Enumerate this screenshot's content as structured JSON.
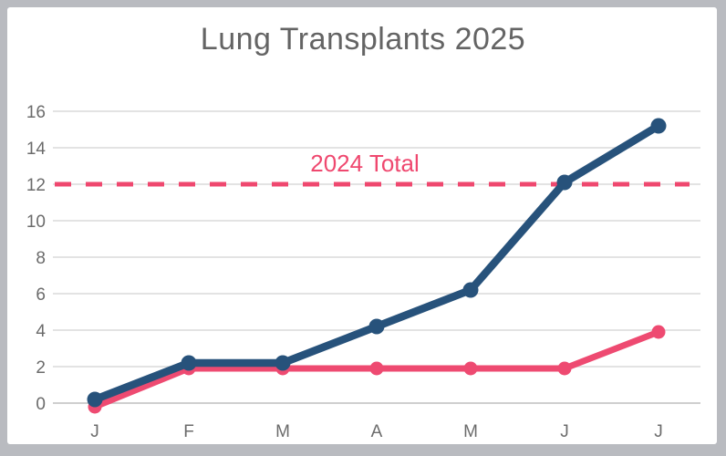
{
  "window": {
    "frame_color": "#b9bbc0",
    "card_color": "#ffffff"
  },
  "chart_data": {
    "type": "line",
    "title": "Lung Transplants 2025",
    "title_color": "#646464",
    "categories": [
      "J",
      "F",
      "M",
      "A",
      "M",
      "J",
      "J"
    ],
    "yticks": [
      0,
      2,
      4,
      6,
      8,
      10,
      12,
      14,
      16
    ],
    "ylim": [
      0,
      16
    ],
    "grid": true,
    "legend": "none",
    "series": [
      {
        "name": "pink-line",
        "color": "#ee4a71",
        "values": [
          -0.2,
          1.9,
          1.9,
          1.9,
          1.9,
          1.9,
          3.9
        ]
      },
      {
        "name": "navy-line",
        "color": "#27527b",
        "values": [
          0.2,
          2.2,
          2.2,
          4.2,
          6.2,
          12.1,
          15.2
        ]
      }
    ],
    "reference_line": {
      "label": "2024 Total",
      "value": 12,
      "color": "#ef486f",
      "style": "dashed"
    },
    "colors": {
      "gridline": "#e3e3e3",
      "axis_line": "#cfcfcf",
      "tick_label": "#6b6b6b"
    }
  }
}
